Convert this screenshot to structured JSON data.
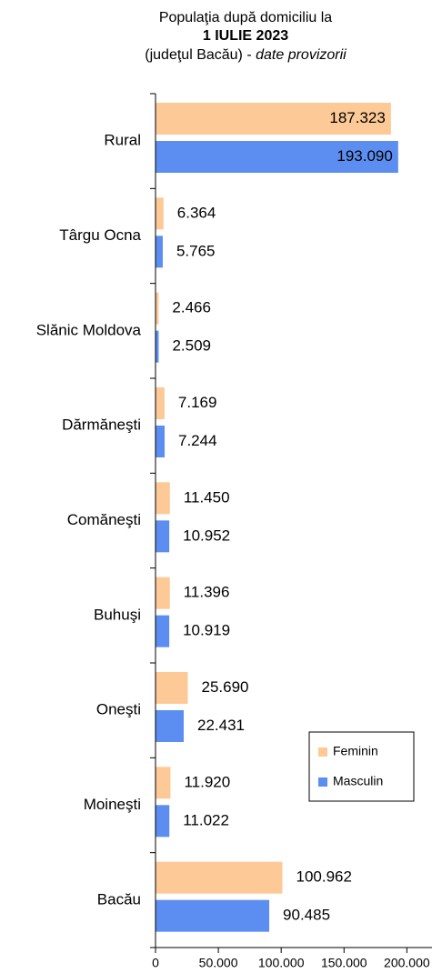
{
  "chart_data": {
    "type": "barh",
    "title": "Populaţia după domiciliu la",
    "subtitle": "1 IULIE 2023",
    "note": "(judeţul Bacău) -",
    "note_italic": "date provizorii",
    "categories": [
      "Rural",
      "Târgu Ocna",
      "Slănic Moldova",
      "Dărmăneşti",
      "Comăneşti",
      "Buhuşi",
      "Oneşti",
      "Moineşti",
      "Bacău"
    ],
    "series": [
      {
        "name": "Feminin",
        "color": "#fdc997",
        "values": [
          187323,
          6364,
          2466,
          7169,
          11450,
          11396,
          25690,
          11920,
          100962
        ],
        "value_labels": [
          "187.323",
          "6.364",
          "2.466",
          "7.169",
          "11.450",
          "11.396",
          "25.690",
          "11.920",
          "100.962"
        ]
      },
      {
        "name": "Masculin",
        "color": "#5b8ef0",
        "values": [
          193090,
          5765,
          2509,
          7244,
          10952,
          10919,
          22431,
          11022,
          90485
        ],
        "value_labels": [
          "193.090",
          "5.765",
          "2.509",
          "7.244",
          "10.952",
          "10.919",
          "22.431",
          "11.022",
          "90.485"
        ]
      }
    ],
    "xlim": [
      0,
      220000
    ],
    "xticks": [
      0,
      {
        "value": 50000,
        "label": "50.000"
      },
      {
        "value": 100000,
        "label": "100.000"
      },
      {
        "value": 150000,
        "label": "150.000"
      },
      {
        "value": 200000,
        "label": "200.000"
      }
    ],
    "legend": "lower right"
  }
}
